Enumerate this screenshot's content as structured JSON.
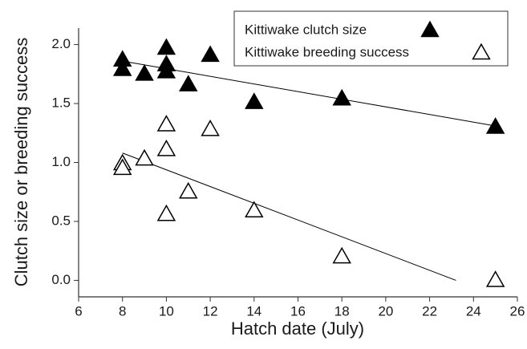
{
  "chart_data": {
    "type": "scatter",
    "x_label": "Hatch date (July)",
    "y_label": "Clutch size or breeding success",
    "xlim": [
      6,
      26
    ],
    "xticks": [
      6,
      8,
      10,
      12,
      14,
      16,
      18,
      20,
      22,
      24,
      26
    ],
    "ylim": [
      -0.14,
      2.14
    ],
    "yticks": [
      {
        "value": 0,
        "label": "0.0"
      },
      {
        "value": 0.5,
        "label": "0.5"
      },
      {
        "value": 1,
        "label": "1.0"
      },
      {
        "value": 1.5,
        "label": "1.5"
      },
      {
        "value": 2,
        "label": "2.0"
      }
    ],
    "legend": "top-right",
    "series": [
      {
        "name": "Kittiwake clutch size",
        "color": "#000000",
        "filled": true,
        "x": [
          8,
          8,
          9,
          10,
          10,
          10,
          11,
          12,
          14,
          18,
          25
        ],
        "values": [
          1.87,
          1.79,
          1.75,
          1.97,
          1.83,
          1.77,
          1.66,
          1.91,
          1.51,
          1.54,
          1.3
        ],
        "trend": {
          "x": [
            8,
            25
          ],
          "y": [
            1.86,
            1.31
          ]
        }
      },
      {
        "name": "Kittiwake breeding success",
        "color": "#000000",
        "filled": false,
        "x": [
          8,
          8,
          9,
          10,
          10,
          10,
          11,
          12,
          14,
          18,
          25
        ],
        "values": [
          0.99,
          0.95,
          1.03,
          1.32,
          1.11,
          0.56,
          0.75,
          1.28,
          0.59,
          0.2,
          0.0
        ],
        "trend": {
          "x": [
            8,
            23.2
          ],
          "y": [
            1.08,
            0.0
          ]
        }
      }
    ]
  }
}
